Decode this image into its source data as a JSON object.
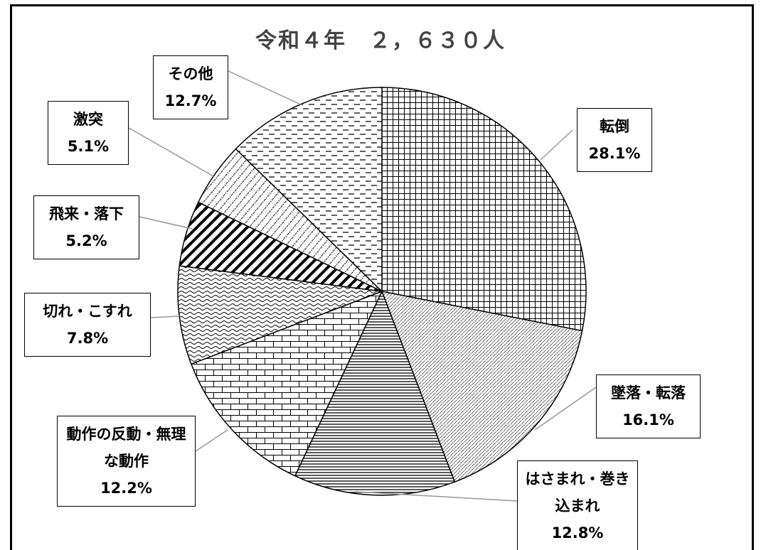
{
  "chart_data": {
    "type": "pie",
    "title": "令和４年　２，６３０人",
    "categories": [
      "転倒",
      "墜落・転落",
      "はさまれ・巻き込まれ",
      "動作の反動・無理な動作",
      "切れ・こすれ",
      "飛来・落下",
      "激突",
      "その他"
    ],
    "values": [
      28.1,
      16.1,
      12.8,
      12.2,
      7.8,
      5.2,
      5.1,
      12.7
    ],
    "value_labels": [
      "28.1%",
      "16.1%",
      "12.8%",
      "12.2%",
      "7.8%",
      "5.2%",
      "5.1%",
      "12.7%"
    ]
  }
}
